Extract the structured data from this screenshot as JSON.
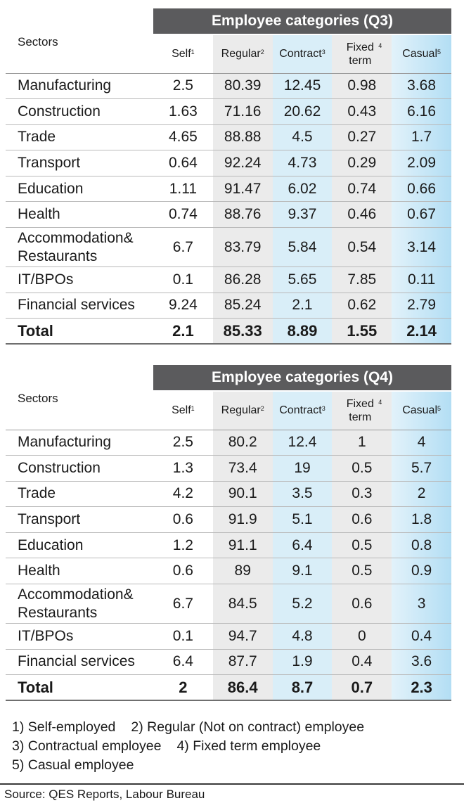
{
  "tables": [
    {
      "title": "Employee categories (Q3)",
      "sectors_label": "Sectors",
      "columns": [
        {
          "label": "Self",
          "sup": "1"
        },
        {
          "label": "Regular",
          "sup": "2"
        },
        {
          "label": "Contract",
          "sup": "3"
        },
        {
          "label": "Fixed term",
          "sup": "4"
        },
        {
          "label": "Casual",
          "sup": "5"
        }
      ],
      "rows": [
        {
          "sector": "Manufacturing",
          "values": [
            "2.5",
            "80.39",
            "12.45",
            "0.98",
            "3.68"
          ]
        },
        {
          "sector": "Construction",
          "values": [
            "1.63",
            "71.16",
            "20.62",
            "0.43",
            "6.16"
          ]
        },
        {
          "sector": "Trade",
          "values": [
            "4.65",
            "88.88",
            "4.5",
            "0.27",
            "1.7"
          ]
        },
        {
          "sector": "Transport",
          "values": [
            "0.64",
            "92.24",
            "4.73",
            "0.29",
            "2.09"
          ]
        },
        {
          "sector": "Education",
          "values": [
            "1.11",
            "91.47",
            "6.02",
            "0.74",
            "0.66"
          ]
        },
        {
          "sector": "Health",
          "values": [
            "0.74",
            "88.76",
            "9.37",
            "0.46",
            "0.67"
          ]
        },
        {
          "sector": "Accommodation& Restaurants",
          "values": [
            "6.7",
            "83.79",
            "5.84",
            "0.54",
            "3.14"
          ]
        },
        {
          "sector": "IT/BPOs",
          "values": [
            "0.1",
            "86.28",
            "5.65",
            "7.85",
            "0.11"
          ]
        },
        {
          "sector": "Financial services",
          "values": [
            "9.24",
            "85.24",
            "2.1",
            "0.62",
            "2.79"
          ]
        },
        {
          "sector": "Total",
          "values": [
            "2.1",
            "85.33",
            "8.89",
            "1.55",
            "2.14"
          ]
        }
      ]
    },
    {
      "title": "Employee categories (Q4)",
      "sectors_label": "Sectors",
      "columns": [
        {
          "label": "Self",
          "sup": "1"
        },
        {
          "label": "Regular",
          "sup": "2"
        },
        {
          "label": "Contract",
          "sup": "3"
        },
        {
          "label": "Fixed term",
          "sup": "4"
        },
        {
          "label": "Casual",
          "sup": "5"
        }
      ],
      "rows": [
        {
          "sector": "Manufacturing",
          "values": [
            "2.5",
            "80.2",
            "12.4",
            "1",
            "4"
          ]
        },
        {
          "sector": "Construction",
          "values": [
            "1.3",
            "73.4",
            "19",
            "0.5",
            "5.7"
          ]
        },
        {
          "sector": "Trade",
          "values": [
            "4.2",
            "90.1",
            "3.5",
            "0.3",
            "2"
          ]
        },
        {
          "sector": "Transport",
          "values": [
            "0.6",
            "91.9",
            "5.1",
            "0.6",
            "1.8"
          ]
        },
        {
          "sector": "Education",
          "values": [
            "1.2",
            "91.1",
            "6.4",
            "0.5",
            "0.8"
          ]
        },
        {
          "sector": "Health",
          "values": [
            "0.6",
            "89",
            "9.1",
            "0.5",
            "0.9"
          ]
        },
        {
          "sector": "Accommodation& Restaurants",
          "values": [
            "6.7",
            "84.5",
            "5.2",
            "0.6",
            "3"
          ]
        },
        {
          "sector": "IT/BPOs",
          "values": [
            "0.1",
            "94.7",
            "4.8",
            "0",
            "0.4"
          ]
        },
        {
          "sector": "Financial services",
          "values": [
            "6.4",
            "87.7",
            "1.9",
            "0.4",
            "3.6"
          ]
        },
        {
          "sector": "Total",
          "values": [
            "2",
            "86.4",
            "8.7",
            "0.7",
            "2.3"
          ]
        }
      ]
    }
  ],
  "notes": [
    [
      "1) Self-employed",
      "2) Regular (Not on contract) employee"
    ],
    [
      "3) Contractual employee",
      "4) Fixed term employee"
    ],
    [
      "5) Casual employee"
    ]
  ],
  "source": "Source: QES Reports, Labour Bureau",
  "chart_data": [
    {
      "type": "table",
      "title": "Employee categories (Q3)",
      "columns": [
        "Sectors",
        "Self",
        "Regular",
        "Contract",
        "Fixed term",
        "Casual"
      ],
      "rows": [
        [
          "Manufacturing",
          2.5,
          80.39,
          12.45,
          0.98,
          3.68
        ],
        [
          "Construction",
          1.63,
          71.16,
          20.62,
          0.43,
          6.16
        ],
        [
          "Trade",
          4.65,
          88.88,
          4.5,
          0.27,
          1.7
        ],
        [
          "Transport",
          0.64,
          92.24,
          4.73,
          0.29,
          2.09
        ],
        [
          "Education",
          1.11,
          91.47,
          6.02,
          0.74,
          0.66
        ],
        [
          "Health",
          0.74,
          88.76,
          9.37,
          0.46,
          0.67
        ],
        [
          "Accommodation& Restaurants",
          6.7,
          83.79,
          5.84,
          0.54,
          3.14
        ],
        [
          "IT/BPOs",
          0.1,
          86.28,
          5.65,
          7.85,
          0.11
        ],
        [
          "Financial services",
          9.24,
          85.24,
          2.1,
          0.62,
          2.79
        ],
        [
          "Total",
          2.1,
          85.33,
          8.89,
          1.55,
          2.14
        ]
      ]
    },
    {
      "type": "table",
      "title": "Employee categories (Q4)",
      "columns": [
        "Sectors",
        "Self",
        "Regular",
        "Contract",
        "Fixed term",
        "Casual"
      ],
      "rows": [
        [
          "Manufacturing",
          2.5,
          80.2,
          12.4,
          1,
          4
        ],
        [
          "Construction",
          1.3,
          73.4,
          19,
          0.5,
          5.7
        ],
        [
          "Trade",
          4.2,
          90.1,
          3.5,
          0.3,
          2
        ],
        [
          "Transport",
          0.6,
          91.9,
          5.1,
          0.6,
          1.8
        ],
        [
          "Education",
          1.2,
          91.1,
          6.4,
          0.5,
          0.8
        ],
        [
          "Health",
          0.6,
          89,
          9.1,
          0.5,
          0.9
        ],
        [
          "Accommodation& Restaurants",
          6.7,
          84.5,
          5.2,
          0.6,
          3
        ],
        [
          "IT/BPOs",
          0.1,
          94.7,
          4.8,
          0,
          0.4
        ],
        [
          "Financial services",
          6.4,
          87.7,
          1.9,
          0.4,
          3.6
        ],
        [
          "Total",
          2,
          86.4,
          8.7,
          0.7,
          2.3
        ]
      ]
    }
  ]
}
